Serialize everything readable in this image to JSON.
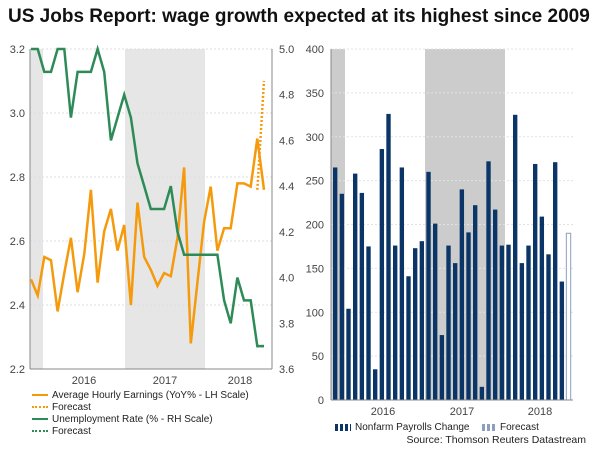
{
  "title": "US Jobs Report: wage growth expected at its highest since 2009",
  "source": "Source: Thomson Reuters Datastream",
  "colors": {
    "ahe": "#f59a0c",
    "unemp": "#2e8b57",
    "bars": "#0b3566",
    "shade_left": "#e6e6e6",
    "shade_right": "#cccccc"
  },
  "chart_data": [
    {
      "type": "line",
      "title": "",
      "xlabels": [
        "2016",
        "2017",
        "2018"
      ],
      "ylim_left": [
        2.2,
        3.2
      ],
      "yticks_left": [
        "2.2",
        "2.4",
        "2.6",
        "2.8",
        "3.0",
        "3.2"
      ],
      "ylim_right": [
        3.6,
        5.0
      ],
      "yticks_right": [
        "3.6",
        "3.8",
        "4.0",
        "4.2",
        "4.4",
        "4.6",
        "4.8",
        "5.0"
      ],
      "series": [
        {
          "name": "Average Hourly Earnings (YoY% - LH Scale)",
          "axis": "left",
          "values": [
            2.48,
            2.43,
            2.55,
            2.54,
            2.38,
            2.5,
            2.61,
            2.44,
            2.56,
            2.76,
            2.47,
            2.63,
            2.7,
            2.57,
            2.65,
            2.4,
            2.72,
            2.55,
            2.51,
            2.46,
            2.5,
            2.49,
            2.61,
            2.83,
            2.28,
            2.47,
            2.66,
            2.77,
            2.57,
            2.64,
            2.64,
            2.78,
            2.78,
            2.77,
            2.92,
            2.76
          ]
        },
        {
          "name": "Forecast",
          "axis": "left",
          "dashed": true,
          "values": [
            2.76,
            3.1
          ]
        },
        {
          "name": "Unemployment Rate (% - RH Scale)",
          "axis": "right",
          "values": [
            5.0,
            5.0,
            4.9,
            4.9,
            5.0,
            5.0,
            4.7,
            4.9,
            4.9,
            4.9,
            5.0,
            4.9,
            4.6,
            4.7,
            4.8,
            4.7,
            4.5,
            4.4,
            4.3,
            4.3,
            4.3,
            4.4,
            4.2,
            4.1,
            4.1,
            4.1,
            4.1,
            4.1,
            4.1,
            3.9,
            3.8,
            4.0,
            3.9,
            3.9,
            3.7,
            3.7
          ]
        },
        {
          "name": "Forecast",
          "axis": "right",
          "dashed": true,
          "values": [
            3.7,
            3.7
          ]
        }
      ]
    },
    {
      "type": "bar",
      "title": "",
      "xlabels": [
        "2016",
        "2017",
        "2018"
      ],
      "ylim": [
        0,
        400
      ],
      "yticks": [
        "0",
        "50",
        "100",
        "150",
        "200",
        "250",
        "300",
        "350",
        "400"
      ],
      "series": [
        {
          "name": "Nonfarm Payrolls Change",
          "values": [
            265,
            235,
            104,
            258,
            236,
            175,
            35,
            286,
            326,
            176,
            265,
            141,
            173,
            181,
            260,
            201,
            74,
            176,
            156,
            240,
            191,
            222,
            15,
            272,
            217,
            176,
            177,
            325,
            156,
            176,
            269,
            209,
            166,
            271,
            135
          ]
        },
        {
          "name": "Forecast",
          "values": [
            190
          ]
        }
      ]
    }
  ]
}
